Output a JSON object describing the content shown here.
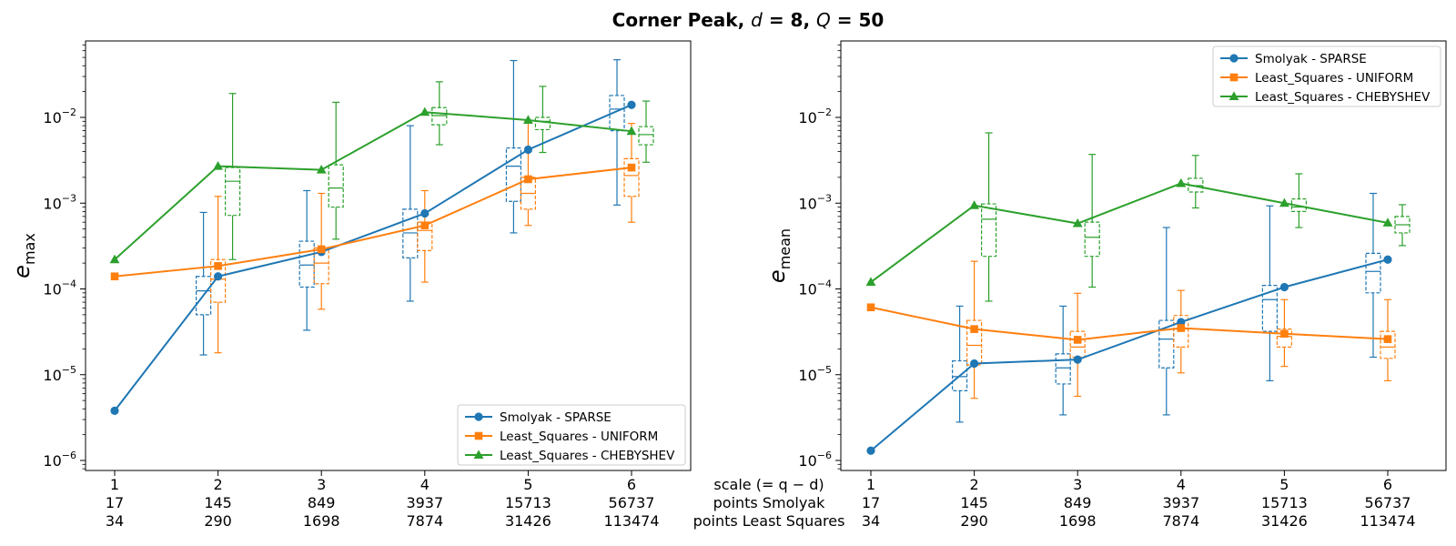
{
  "figure": {
    "title": "Corner Peak, d = 8, Q = 50",
    "title_parts": {
      "name": "Corner Peak, ",
      "d_sym": "d",
      "d_val": " = 8, ",
      "q_sym": "Q",
      "q_val": " = 50"
    }
  },
  "xaxis_info": {
    "row_labels": [
      "scale (= q − d)",
      "points Smolyak",
      "points Least Squares"
    ],
    "scale": [
      "1",
      "2",
      "3",
      "4",
      "5",
      "6"
    ],
    "points_smolyak": [
      "17",
      "145",
      "849",
      "3937",
      "15713",
      "56737"
    ],
    "points_least_squares": [
      "34",
      "290",
      "1698",
      "7874",
      "31426",
      "113474"
    ]
  },
  "colors": {
    "smolyak": "#1f77b4",
    "uniform": "#ff7f0e",
    "chebyshev": "#2ca02c"
  },
  "chart_data": [
    {
      "type": "line",
      "ylabel": "e_max",
      "yscale": "log",
      "ylim": [
        7.5e-07,
        0.08
      ],
      "ytick_labels": [
        "10^-6",
        "10^-5",
        "10^-4",
        "10^-3",
        "10^-2"
      ],
      "x": [
        1,
        2,
        3,
        4,
        5,
        6
      ],
      "legend_position": "lower-right",
      "series": [
        {
          "name": "Smolyak - SPARSE",
          "marker": "circle",
          "values": [
            3.8e-06,
            0.00014,
            0.00027,
            0.00076,
            0.0042,
            0.014
          ],
          "boxes": [
            null,
            {
              "wlo": 1.7e-05,
              "q1": 5e-05,
              "med": 9.5e-05,
              "q3": 0.00014,
              "whi": 0.00078
            },
            {
              "wlo": 3.3e-05,
              "q1": 0.000105,
              "med": 0.00019,
              "q3": 0.00036,
              "whi": 0.0014
            },
            {
              "wlo": 7.2e-05,
              "q1": 0.00023,
              "med": 0.00045,
              "q3": 0.00085,
              "whi": 0.008
            },
            {
              "wlo": 0.00045,
              "q1": 0.00105,
              "med": 0.0027,
              "q3": 0.0044,
              "whi": 0.046
            },
            {
              "wlo": 0.00095,
              "q1": 0.007,
              "med": 0.0125,
              "q3": 0.018,
              "whi": 0.047
            }
          ]
        },
        {
          "name": "Least_Squares - UNIFORM",
          "marker": "square",
          "values": [
            0.00014,
            0.000185,
            0.00029,
            0.00055,
            0.0019,
            0.0026
          ],
          "boxes": [
            null,
            {
              "wlo": 1.8e-05,
              "q1": 7e-05,
              "med": 0.00013,
              "q3": 0.00022,
              "whi": 0.0012
            },
            {
              "wlo": 5.8e-05,
              "q1": 0.000115,
              "med": 0.0002,
              "q3": 0.0003,
              "whi": 0.0013
            },
            {
              "wlo": 0.00012,
              "q1": 0.00028,
              "med": 0.00048,
              "q3": 0.0006,
              "whi": 0.0014
            },
            {
              "wlo": 0.00055,
              "q1": 0.00085,
              "med": 0.0013,
              "q3": 0.002,
              "whi": 0.009
            },
            {
              "wlo": 0.0006,
              "q1": 0.0012,
              "med": 0.0021,
              "q3": 0.0033,
              "whi": 0.0085
            }
          ]
        },
        {
          "name": "Least_Squares - CHEBYSHEV",
          "marker": "triangle",
          "values": [
            0.00022,
            0.0027,
            0.00245,
            0.0115,
            0.0093,
            0.0069
          ],
          "boxes": [
            null,
            {
              "wlo": 0.00022,
              "q1": 0.00072,
              "med": 0.0018,
              "q3": 0.0026,
              "whi": 0.019
            },
            {
              "wlo": 0.00038,
              "q1": 0.0009,
              "med": 0.0015,
              "q3": 0.0028,
              "whi": 0.015
            },
            {
              "wlo": 0.0048,
              "q1": 0.0082,
              "med": 0.0105,
              "q3": 0.013,
              "whi": 0.026
            },
            {
              "wlo": 0.0039,
              "q1": 0.0072,
              "med": 0.009,
              "q3": 0.01,
              "whi": 0.023
            },
            {
              "wlo": 0.003,
              "q1": 0.0048,
              "med": 0.0063,
              "q3": 0.0078,
              "whi": 0.0155
            }
          ]
        }
      ]
    },
    {
      "type": "line",
      "ylabel": "e_mean",
      "yscale": "log",
      "ylim": [
        7.5e-07,
        0.08
      ],
      "ytick_labels": [
        "10^-6",
        "10^-5",
        "10^-4",
        "10^-3",
        "10^-2"
      ],
      "x": [
        1,
        2,
        3,
        4,
        5,
        6
      ],
      "legend_position": "upper-right",
      "series": [
        {
          "name": "Smolyak - SPARSE",
          "marker": "circle",
          "values": [
            1.3e-06,
            1.35e-05,
            1.5e-05,
            4.1e-05,
            0.000105,
            0.00022
          ],
          "boxes": [
            null,
            {
              "wlo": 2.8e-06,
              "q1": 6.5e-06,
              "med": 9.5e-06,
              "q3": 1.45e-05,
              "whi": 6.3e-05
            },
            {
              "wlo": 3.4e-06,
              "q1": 7.8e-06,
              "med": 1.2e-05,
              "q3": 1.75e-05,
              "whi": 6.3e-05
            },
            {
              "wlo": 3.4e-06,
              "q1": 1.2e-05,
              "med": 2.6e-05,
              "q3": 4.3e-05,
              "whi": 0.00052
            },
            {
              "wlo": 8.5e-06,
              "q1": 3.2e-05,
              "med": 7.5e-05,
              "q3": 0.00011,
              "whi": 0.00093
            },
            {
              "wlo": 1.6e-05,
              "q1": 9e-05,
              "med": 0.00016,
              "q3": 0.00026,
              "whi": 0.0013
            }
          ]
        },
        {
          "name": "Least_Squares - UNIFORM",
          "marker": "square",
          "values": [
            6.1e-05,
            3.4e-05,
            2.55e-05,
            3.5e-05,
            3e-05,
            2.6e-05
          ],
          "boxes": [
            null,
            {
              "wlo": 5.3e-06,
              "q1": 1.3e-05,
              "med": 2.2e-05,
              "q3": 4.3e-05,
              "whi": 0.00021
            },
            {
              "wlo": 5.6e-06,
              "q1": 1.6e-05,
              "med": 2.1e-05,
              "q3": 3.2e-05,
              "whi": 8.9e-05
            },
            {
              "wlo": 1.05e-05,
              "q1": 2.1e-05,
              "med": 3.4e-05,
              "q3": 4.9e-05,
              "whi": 9.6e-05
            },
            {
              "wlo": 1.25e-05,
              "q1": 2.1e-05,
              "med": 2.8e-05,
              "q3": 3.4e-05,
              "whi": 7.5e-05
            },
            {
              "wlo": 8.5e-06,
              "q1": 1.55e-05,
              "med": 2.1e-05,
              "q3": 3.2e-05,
              "whi": 7.5e-05
            }
          ]
        },
        {
          "name": "Least_Squares - CHEBYSHEV",
          "marker": "triangle",
          "values": [
            0.00012,
            0.00094,
            0.00058,
            0.0017,
            0.001,
            0.00059
          ],
          "boxes": [
            null,
            {
              "wlo": 7.2e-05,
              "q1": 0.00024,
              "med": 0.00065,
              "q3": 0.00098,
              "whi": 0.0066
            },
            {
              "wlo": 0.000105,
              "q1": 0.00024,
              "med": 0.0004,
              "q3": 0.0006,
              "whi": 0.0037
            },
            {
              "wlo": 0.00088,
              "q1": 0.00135,
              "med": 0.0016,
              "q3": 0.00195,
              "whi": 0.0036
            },
            {
              "wlo": 0.00052,
              "q1": 0.0008,
              "med": 0.0009,
              "q3": 0.00112,
              "whi": 0.0022
            },
            {
              "wlo": 0.00032,
              "q1": 0.00045,
              "med": 0.00056,
              "q3": 0.0007,
              "whi": 0.00096
            }
          ]
        }
      ]
    }
  ]
}
